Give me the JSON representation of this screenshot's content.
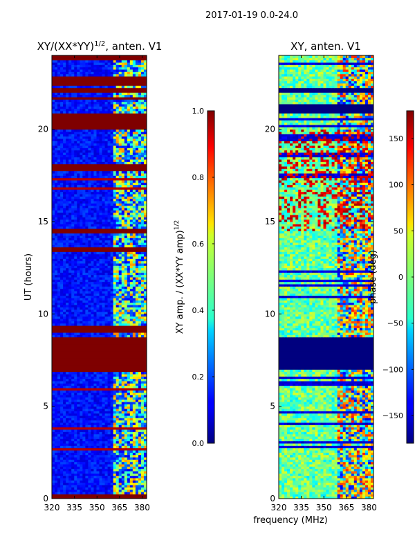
{
  "suptitle": "2017-01-19 0.0-24.0",
  "xlabel_shared": "frequency (MHz)",
  "chart_data": [
    {
      "type": "heatmap",
      "title_main": "XY/(XX*YY)",
      "title_sup": "1/2",
      "title_rest": ", anten. V1",
      "ylabel": "UT (hours)",
      "x_ticks": [
        "320",
        "335",
        "350",
        "365",
        "380"
      ],
      "x_tick_values": [
        320,
        335,
        350,
        365,
        380
      ],
      "xlim": [
        320,
        383
      ],
      "y_ticks": [
        "0",
        "5",
        "10",
        "15",
        "20"
      ],
      "y_tick_values": [
        0,
        5,
        10,
        15,
        20
      ],
      "ylim": [
        0,
        24
      ],
      "colorbar": {
        "label_main": "XY amp. / (XX*YY amp)",
        "label_sup": "1/2",
        "ticks": [
          "0.0",
          "0.2",
          "0.4",
          "0.6",
          "0.8",
          "1.0"
        ],
        "tick_values": [
          0.0,
          0.2,
          0.4,
          0.6,
          0.8,
          1.0
        ],
        "range": [
          0.0,
          1.0
        ]
      },
      "saturated_bands_hours": [
        [
          0.0,
          0.2
        ],
        [
          6.9,
          8.8
        ],
        [
          9.0,
          9.2
        ],
        [
          9.3,
          9.4
        ],
        [
          13.4,
          13.6
        ],
        [
          14.4,
          14.6
        ],
        [
          17.8,
          18.1
        ],
        [
          20.0,
          20.9
        ],
        [
          21.6,
          21.8
        ],
        [
          22.0,
          22.3
        ],
        [
          22.4,
          22.9
        ],
        [
          23.7,
          24.0
        ]
      ]
    },
    {
      "type": "heatmap",
      "title_main": "XY, anten. V1",
      "title_sup": "",
      "title_rest": "",
      "ylabel": "",
      "x_ticks": [
        "320",
        "335",
        "350",
        "365",
        "380"
      ],
      "x_tick_values": [
        320,
        335,
        350,
        365,
        380
      ],
      "xlim": [
        320,
        383
      ],
      "y_ticks": [
        "0",
        "5",
        "10",
        "15",
        "20"
      ],
      "y_tick_values": [
        0,
        5,
        10,
        15,
        20
      ],
      "ylim": [
        0,
        24
      ],
      "colorbar": {
        "label_main": "phase (deg)",
        "label_sup": "",
        "ticks": [
          "−150",
          "−100",
          "−50",
          "0",
          "50",
          "100",
          "150"
        ],
        "tick_values": [
          -150,
          -100,
          -50,
          0,
          50,
          100,
          150
        ],
        "range": [
          -180,
          180
        ]
      },
      "blank_bands_hours": [
        [
          7.0,
          8.8
        ],
        [
          20.9,
          21.4
        ],
        [
          22.0,
          22.3
        ]
      ]
    }
  ]
}
